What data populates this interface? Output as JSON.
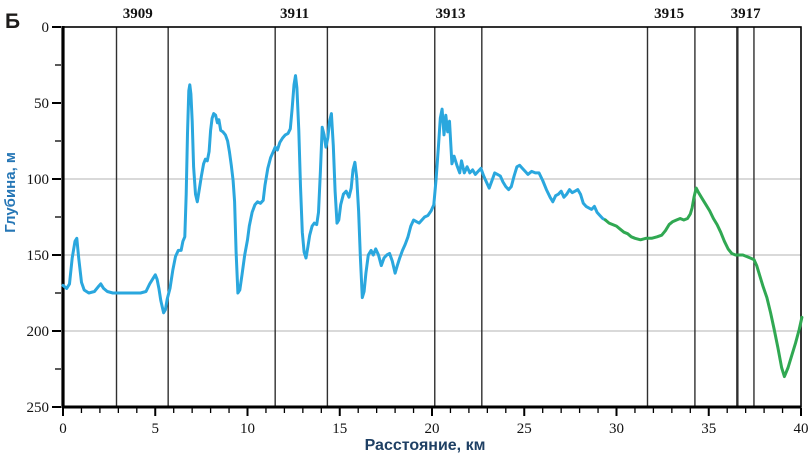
{
  "panel_label": "Б",
  "colors": {
    "blue_line": "#2aa7de",
    "green_line": "#30a852",
    "grid": "#b3b3b3",
    "marker_line": "#2f2f2f",
    "frame": "#000000",
    "y_title": "#2576b5",
    "x_title": "#1f4064"
  },
  "chart_data": {
    "type": "line",
    "title": "",
    "xlabel": "Расстояние, км",
    "ylabel": "Глубина, м",
    "xlim": [
      0,
      40
    ],
    "ylim": [
      0,
      250
    ],
    "y_axis_inverted_depth": true,
    "grid": "horizontal-only",
    "legend_position": "none",
    "x_ticks_major": [
      0,
      5,
      10,
      15,
      20,
      25,
      30,
      35,
      40
    ],
    "x_tick_minor_step": 1,
    "y_ticks_major": [
      0,
      50,
      100,
      150,
      200,
      250
    ],
    "y_tick_minor_step": 25,
    "gridlines_depth_m": [
      100,
      150,
      200
    ],
    "stations": [
      {
        "label": "3909",
        "label_km": 4.05,
        "boundaries": [
          {
            "km": 2.9,
            "w": 1.4
          },
          {
            "km": 5.7,
            "w": 1.4
          }
        ]
      },
      {
        "label": "3911",
        "label_km": 12.55,
        "boundaries": [
          {
            "km": 11.5,
            "w": 1.4
          },
          {
            "km": 14.33,
            "w": 1.4
          }
        ]
      },
      {
        "label": "3913",
        "label_km": 21.0,
        "boundaries": [
          {
            "km": 20.15,
            "w": 1.4
          },
          {
            "km": 22.7,
            "w": 1.4
          }
        ]
      },
      {
        "label": "3915",
        "label_km": 32.85,
        "boundaries": [
          {
            "km": 31.68,
            "w": 1.4
          },
          {
            "km": 34.25,
            "w": 1.4
          }
        ]
      },
      {
        "label": "3917",
        "label_km": 37.0,
        "boundaries": [
          {
            "km": 36.55,
            "w": 2.4
          },
          {
            "km": 37.45,
            "w": 1.4
          }
        ]
      }
    ],
    "series": [
      {
        "name": "segment-1-blue",
        "color": "#2aa7de",
        "points": [
          [
            0,
            170
          ],
          [
            0.2,
            172
          ],
          [
            0.35,
            169
          ],
          [
            0.5,
            152
          ],
          [
            0.65,
            141
          ],
          [
            0.75,
            139
          ],
          [
            0.85,
            152
          ],
          [
            1.0,
            168
          ],
          [
            1.15,
            173
          ],
          [
            1.4,
            175
          ],
          [
            1.7,
            174
          ],
          [
            1.9,
            171
          ],
          [
            2.05,
            169
          ],
          [
            2.2,
            172
          ],
          [
            2.4,
            174
          ],
          [
            2.7,
            175
          ],
          [
            3.0,
            175
          ],
          [
            3.4,
            175
          ],
          [
            3.8,
            175
          ],
          [
            4.2,
            175
          ],
          [
            4.5,
            174
          ],
          [
            4.7,
            169
          ],
          [
            4.85,
            166
          ],
          [
            5.0,
            163
          ],
          [
            5.1,
            166
          ],
          [
            5.2,
            172
          ],
          [
            5.3,
            180
          ],
          [
            5.45,
            188
          ],
          [
            5.55,
            186
          ],
          [
            5.65,
            179
          ],
          [
            5.8,
            172
          ],
          [
            5.95,
            160
          ],
          [
            6.1,
            151
          ],
          [
            6.25,
            147
          ],
          [
            6.4,
            147
          ],
          [
            6.5,
            141
          ],
          [
            6.6,
            138
          ],
          [
            6.68,
            110
          ],
          [
            6.75,
            70
          ],
          [
            6.82,
            42
          ],
          [
            6.87,
            38
          ],
          [
            6.93,
            44
          ],
          [
            7.0,
            62
          ],
          [
            7.08,
            92
          ],
          [
            7.18,
            110
          ],
          [
            7.28,
            115
          ],
          [
            7.4,
            106
          ],
          [
            7.5,
            98
          ],
          [
            7.62,
            90
          ],
          [
            7.72,
            87
          ],
          [
            7.82,
            88
          ],
          [
            7.92,
            82
          ],
          [
            8.0,
            68
          ],
          [
            8.08,
            60
          ],
          [
            8.17,
            57
          ],
          [
            8.27,
            58
          ],
          [
            8.37,
            63
          ],
          [
            8.45,
            61
          ],
          [
            8.55,
            68
          ],
          [
            8.67,
            69
          ],
          [
            8.8,
            71
          ],
          [
            8.92,
            75
          ],
          [
            9.02,
            82
          ],
          [
            9.12,
            91
          ],
          [
            9.22,
            101
          ],
          [
            9.3,
            115
          ],
          [
            9.38,
            148
          ],
          [
            9.48,
            175
          ],
          [
            9.58,
            173
          ],
          [
            9.7,
            163
          ],
          [
            9.85,
            150
          ],
          [
            10.0,
            140
          ],
          [
            10.1,
            131
          ],
          [
            10.25,
            122
          ],
          [
            10.4,
            117
          ],
          [
            10.55,
            115
          ],
          [
            10.7,
            116
          ],
          [
            10.85,
            114
          ],
          [
            10.95,
            104
          ],
          [
            11.1,
            93
          ],
          [
            11.25,
            86
          ],
          [
            11.4,
            82
          ],
          [
            11.5,
            79
          ],
          [
            11.62,
            81
          ],
          [
            11.75,
            76
          ],
          [
            11.9,
            73
          ],
          [
            12.05,
            71
          ],
          [
            12.2,
            70
          ],
          [
            12.32,
            67
          ],
          [
            12.42,
            54
          ],
          [
            12.52,
            38
          ],
          [
            12.6,
            32
          ],
          [
            12.68,
            40
          ],
          [
            12.78,
            68
          ],
          [
            12.87,
            105
          ],
          [
            12.97,
            135
          ],
          [
            13.07,
            148
          ],
          [
            13.17,
            152
          ],
          [
            13.27,
            145
          ],
          [
            13.37,
            137
          ],
          [
            13.5,
            131
          ],
          [
            13.62,
            129
          ],
          [
            13.75,
            130
          ],
          [
            13.85,
            122
          ],
          [
            13.95,
            95
          ],
          [
            14.05,
            66
          ],
          [
            14.15,
            71
          ],
          [
            14.25,
            79
          ],
          [
            14.35,
            73
          ],
          [
            14.45,
            62
          ],
          [
            14.55,
            57
          ],
          [
            14.65,
            78
          ],
          [
            14.75,
            108
          ],
          [
            14.85,
            129
          ],
          [
            14.95,
            127
          ],
          [
            15.05,
            117
          ],
          [
            15.2,
            110
          ],
          [
            15.35,
            108
          ],
          [
            15.5,
            112
          ],
          [
            15.62,
            106
          ],
          [
            15.72,
            94
          ],
          [
            15.82,
            89
          ],
          [
            15.92,
            99
          ],
          [
            16.02,
            121
          ],
          [
            16.12,
            152
          ],
          [
            16.22,
            178
          ],
          [
            16.32,
            174
          ],
          [
            16.42,
            162
          ],
          [
            16.55,
            150
          ],
          [
            16.7,
            147
          ],
          [
            16.82,
            150
          ],
          [
            16.95,
            146
          ],
          [
            17.1,
            150
          ],
          [
            17.25,
            157
          ],
          [
            17.4,
            152
          ],
          [
            17.55,
            150
          ],
          [
            17.7,
            149
          ],
          [
            17.85,
            154
          ],
          [
            18.0,
            162
          ],
          [
            18.12,
            157
          ],
          [
            18.25,
            152
          ],
          [
            18.4,
            147
          ],
          [
            18.55,
            143
          ],
          [
            18.7,
            138
          ],
          [
            18.85,
            131
          ],
          [
            19.0,
            127
          ],
          [
            19.15,
            128
          ],
          [
            19.3,
            129
          ],
          [
            19.45,
            127
          ],
          [
            19.6,
            125
          ],
          [
            19.78,
            124
          ],
          [
            19.95,
            121
          ],
          [
            20.1,
            117
          ],
          [
            20.22,
            100
          ],
          [
            20.35,
            78
          ],
          [
            20.45,
            60
          ],
          [
            20.55,
            54
          ],
          [
            20.65,
            71
          ],
          [
            20.75,
            58
          ],
          [
            20.85,
            69
          ],
          [
            20.95,
            62
          ],
          [
            21.08,
            90
          ],
          [
            21.2,
            85
          ],
          [
            21.35,
            91
          ],
          [
            21.5,
            96
          ],
          [
            21.6,
            88
          ],
          [
            21.75,
            96
          ],
          [
            21.9,
            92
          ],
          [
            22.05,
            96
          ],
          [
            22.2,
            94
          ],
          [
            22.35,
            97
          ],
          [
            22.5,
            95
          ],
          [
            22.65,
            93
          ],
          [
            22.8,
            98
          ],
          [
            22.95,
            102
          ],
          [
            23.1,
            106
          ],
          [
            23.25,
            101
          ],
          [
            23.4,
            96
          ],
          [
            23.55,
            97
          ],
          [
            23.7,
            98
          ],
          [
            23.85,
            102
          ],
          [
            24.0,
            105
          ],
          [
            24.15,
            107
          ],
          [
            24.3,
            105
          ],
          [
            24.45,
            98
          ],
          [
            24.6,
            92
          ],
          [
            24.75,
            91
          ],
          [
            24.9,
            93
          ],
          [
            25.05,
            95
          ],
          [
            25.2,
            97
          ],
          [
            25.4,
            95
          ],
          [
            25.6,
            96
          ],
          [
            25.8,
            96
          ],
          [
            26.0,
            101
          ],
          [
            26.2,
            107
          ],
          [
            26.4,
            112
          ],
          [
            26.55,
            115
          ],
          [
            26.7,
            111
          ],
          [
            26.85,
            110
          ],
          [
            27.0,
            108
          ],
          [
            27.15,
            112
          ],
          [
            27.3,
            110
          ],
          [
            27.45,
            107
          ],
          [
            27.6,
            109
          ],
          [
            27.75,
            108
          ],
          [
            27.9,
            107
          ],
          [
            28.05,
            110
          ],
          [
            28.2,
            116
          ],
          [
            28.35,
            118
          ],
          [
            28.5,
            119
          ],
          [
            28.65,
            120
          ],
          [
            28.8,
            118
          ],
          [
            28.95,
            122
          ],
          [
            29.1,
            124
          ],
          [
            29.25,
            126
          ],
          [
            29.4,
            127
          ]
        ]
      },
      {
        "name": "segment-2-green",
        "color": "#30a852",
        "points": [
          [
            29.4,
            127
          ],
          [
            29.6,
            129
          ],
          [
            29.8,
            130
          ],
          [
            30.0,
            131
          ],
          [
            30.2,
            133
          ],
          [
            30.4,
            135
          ],
          [
            30.6,
            136
          ],
          [
            30.8,
            138
          ],
          [
            31.0,
            139
          ],
          [
            31.3,
            140
          ],
          [
            31.6,
            139
          ],
          [
            31.9,
            139
          ],
          [
            32.2,
            138
          ],
          [
            32.45,
            137
          ],
          [
            32.65,
            134
          ],
          [
            32.85,
            130
          ],
          [
            33.05,
            128
          ],
          [
            33.25,
            127
          ],
          [
            33.45,
            126
          ],
          [
            33.65,
            127
          ],
          [
            33.85,
            126
          ],
          [
            34.0,
            123
          ],
          [
            34.1,
            119
          ],
          [
            34.2,
            112
          ],
          [
            34.32,
            106
          ],
          [
            34.45,
            109
          ],
          [
            34.65,
            113
          ],
          [
            34.85,
            117
          ],
          [
            35.05,
            121
          ],
          [
            35.25,
            126
          ],
          [
            35.45,
            130
          ],
          [
            35.65,
            135
          ],
          [
            35.85,
            141
          ],
          [
            36.05,
            146
          ],
          [
            36.25,
            149
          ],
          [
            36.45,
            150
          ],
          [
            36.65,
            150
          ],
          [
            36.85,
            150
          ],
          [
            37.05,
            151
          ],
          [
            37.25,
            152
          ],
          [
            37.45,
            153
          ],
          [
            37.6,
            157
          ],
          [
            37.75,
            163
          ],
          [
            37.95,
            171
          ],
          [
            38.15,
            178
          ],
          [
            38.35,
            188
          ],
          [
            38.55,
            199
          ],
          [
            38.75,
            211
          ],
          [
            38.95,
            224
          ],
          [
            39.1,
            230
          ],
          [
            39.3,
            224
          ],
          [
            39.5,
            216
          ],
          [
            39.7,
            208
          ],
          [
            39.9,
            199
          ],
          [
            40.05,
            191
          ]
        ]
      }
    ]
  }
}
